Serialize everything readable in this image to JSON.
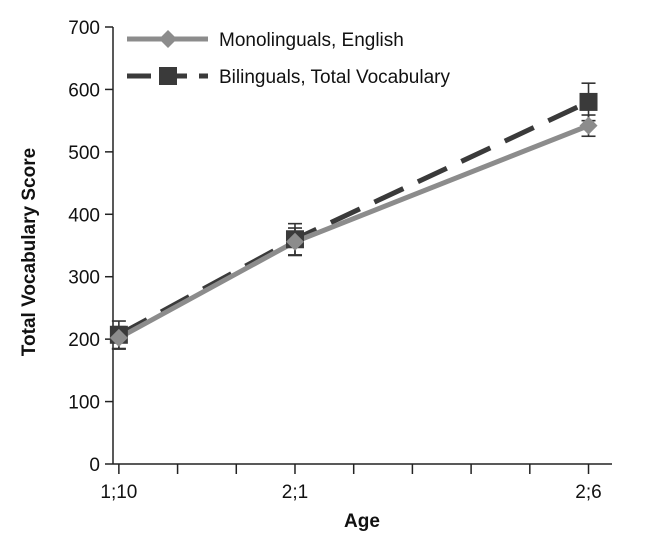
{
  "chart_data": {
    "type": "line",
    "title": "",
    "xlabel": "Age",
    "ylabel": "Total Vocabulary Score",
    "ylim": [
      0,
      700
    ],
    "yticks": [
      "0",
      "100",
      "200",
      "300",
      "400",
      "500",
      "600",
      "700"
    ],
    "x_ticks": [
      {
        "label": "1;10",
        "age_months": 22
      },
      {
        "label": "2;1",
        "age_months": 25
      },
      {
        "label": "2;6",
        "age_months": 30
      }
    ],
    "x_range_months": [
      21.9,
      30.4
    ],
    "grid": false,
    "legend_position": "top-left",
    "series": [
      {
        "name": "Monolinguals, English",
        "line_style": "solid",
        "marker": "diamond",
        "color": "#8c8c8c",
        "x": [
          "1;10",
          "2;1",
          "2;6"
        ],
        "y": [
          202,
          356,
          542
        ],
        "error": [
          18,
          22,
          17
        ]
      },
      {
        "name": "Bilinguals, Total Vocabulary",
        "line_style": "dashed",
        "marker": "square",
        "color": "#3a3a3a",
        "x": [
          "1;10",
          "2;1",
          "2;6"
        ],
        "y": [
          207,
          360,
          580
        ],
        "error": [
          22,
          25,
          30
        ]
      }
    ]
  }
}
